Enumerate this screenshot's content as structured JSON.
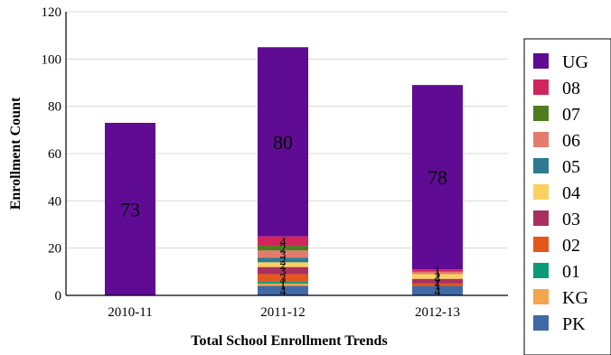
{
  "chart_data": {
    "type": "bar",
    "stacked": true,
    "title": "",
    "xlabel": "Total School Enrollment Trends",
    "ylabel": "Enrollment Count",
    "ylim": [
      0,
      120
    ],
    "yticks": [
      0,
      20,
      40,
      60,
      80,
      100,
      120
    ],
    "categories": [
      "2010-11",
      "2011-12",
      "2012-13"
    ],
    "legend_position": "right",
    "series": [
      {
        "name": "PK",
        "color": "#4169a6",
        "values": [
          0,
          4,
          4
        ]
      },
      {
        "name": "KG",
        "color": "#f4a54f",
        "values": [
          0,
          1,
          0
        ]
      },
      {
        "name": "01",
        "color": "#0d9a7a",
        "values": [
          0,
          1,
          0
        ]
      },
      {
        "name": "02",
        "color": "#e4571b",
        "values": [
          0,
          3,
          1
        ]
      },
      {
        "name": "03",
        "color": "#a8305f",
        "values": [
          0,
          3,
          2
        ]
      },
      {
        "name": "04",
        "color": "#fad060",
        "values": [
          0,
          2,
          2
        ]
      },
      {
        "name": "05",
        "color": "#2f7a8e",
        "values": [
          0,
          2,
          0
        ]
      },
      {
        "name": "06",
        "color": "#e37b6e",
        "values": [
          0,
          3,
          1
        ]
      },
      {
        "name": "07",
        "color": "#4f7b1f",
        "values": [
          0,
          2,
          0
        ]
      },
      {
        "name": "08",
        "color": "#d1265d",
        "values": [
          0,
          4,
          1
        ]
      },
      {
        "name": "UG",
        "color": "#5f0b94",
        "values": [
          73,
          80,
          78
        ]
      }
    ],
    "data_labels": [
      [
        "",
        "",
        "",
        "",
        "",
        "",
        "",
        "",
        "",
        "",
        "73"
      ],
      [
        "4",
        "1",
        "1",
        "3",
        "3",
        "2",
        "2",
        "3",
        "2",
        "4",
        "80"
      ],
      [
        "4",
        "",
        "",
        "1",
        "2",
        "2",
        "",
        "1",
        "",
        "1",
        "78"
      ]
    ]
  }
}
